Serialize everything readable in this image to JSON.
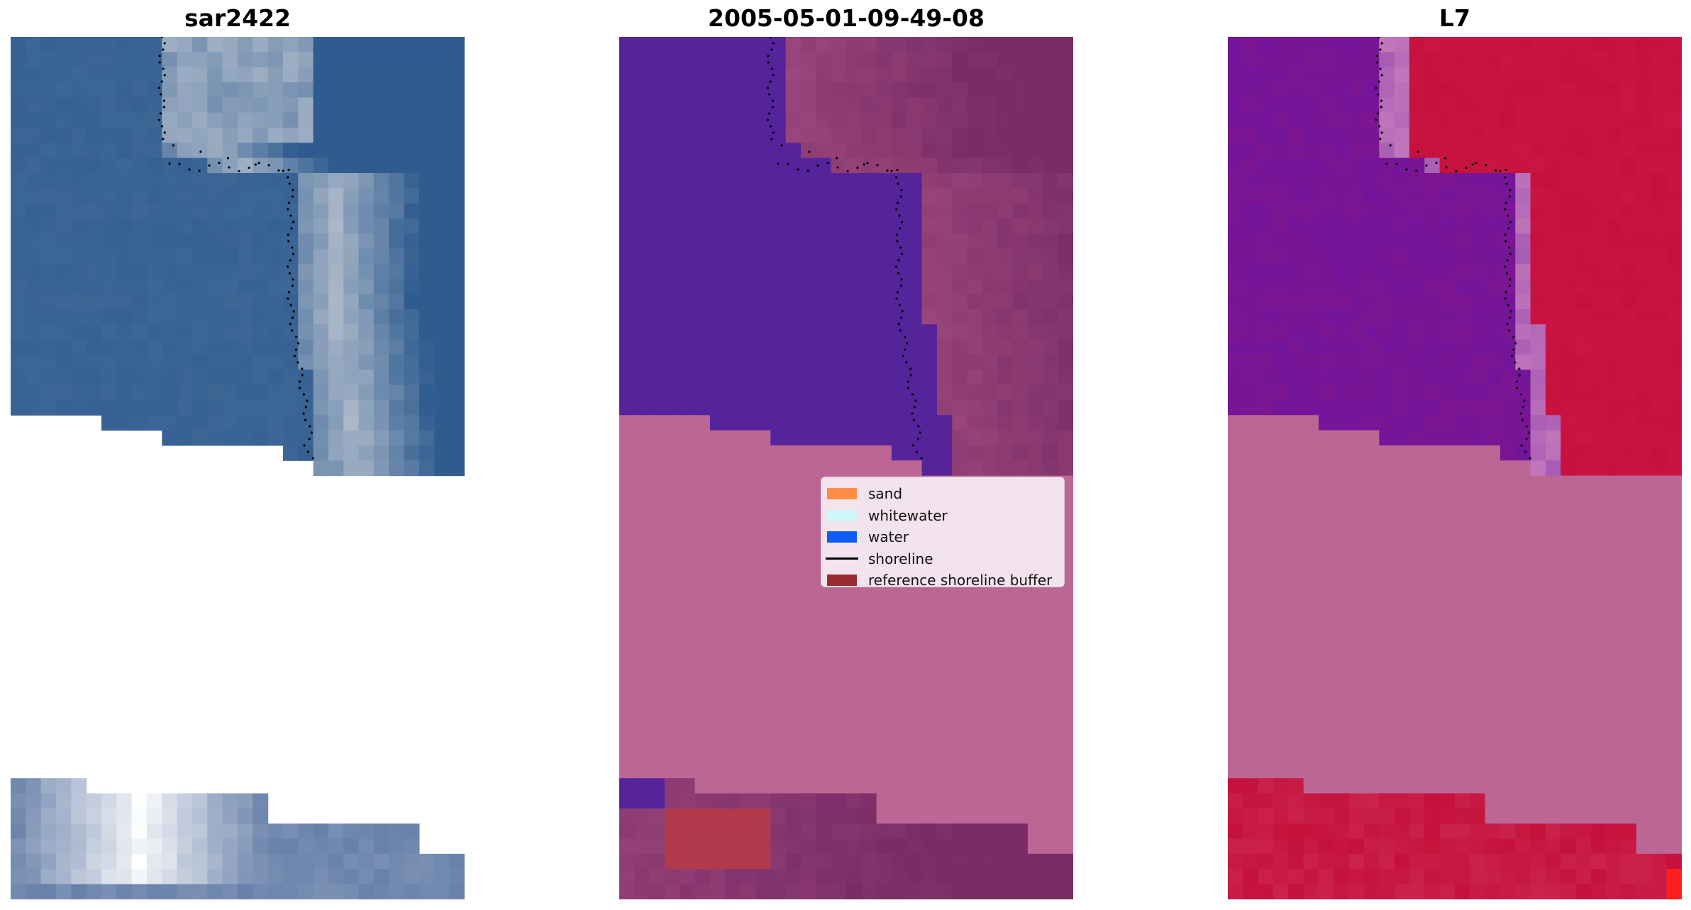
{
  "panels": [
    {
      "title": "sar2422"
    },
    {
      "title": "2005-05-01-09-49-08"
    },
    {
      "title": "L7"
    }
  ],
  "legend": {
    "items": [
      {
        "label": "sand",
        "color": "#ff8c45",
        "kind": "patch"
      },
      {
        "label": "whitewater",
        "color": "#cdf7fb",
        "kind": "patch"
      },
      {
        "label": "water",
        "color": "#0e5cf5",
        "kind": "patch"
      },
      {
        "label": "shoreline",
        "color": "#000000",
        "kind": "line"
      },
      {
        "label": "reference shoreline buffer",
        "color": "#9b2b33",
        "kind": "patch"
      }
    ]
  },
  "colors": {
    "rgb_sea": "#2f5c8f",
    "rgb_surf": "#b9c3d0",
    "class_water": "#55249b",
    "class_land": "#7b2c66",
    "class_nodata": "#bc6696",
    "class_buffer": "#b23a4c",
    "index_low": "#6a16a6",
    "index_high": "#c5113b",
    "index_nodata": "#bc6696",
    "shoreline": "#000000"
  }
}
